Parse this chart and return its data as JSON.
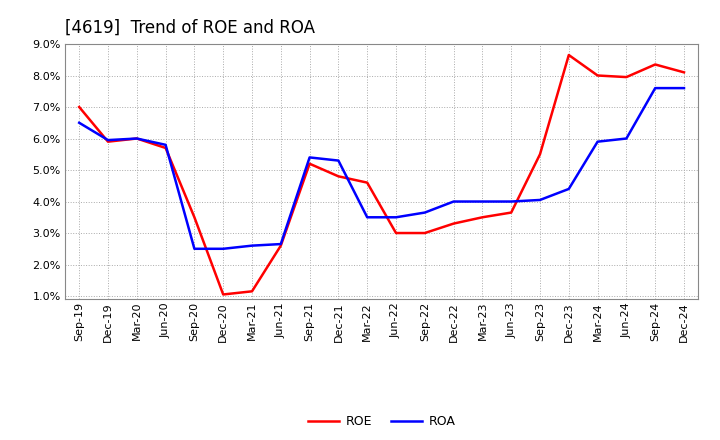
{
  "title": "[4619]  Trend of ROE and ROA",
  "x_labels": [
    "Sep-19",
    "Dec-19",
    "Mar-20",
    "Jun-20",
    "Sep-20",
    "Dec-20",
    "Mar-21",
    "Jun-21",
    "Sep-21",
    "Dec-21",
    "Mar-22",
    "Jun-22",
    "Sep-22",
    "Dec-22",
    "Mar-23",
    "Jun-23",
    "Sep-23",
    "Dec-23",
    "Mar-24",
    "Jun-24",
    "Sep-24",
    "Dec-24"
  ],
  "roe": [
    7.0,
    5.9,
    6.0,
    5.7,
    3.5,
    1.05,
    1.15,
    2.6,
    5.2,
    4.8,
    4.6,
    3.0,
    3.0,
    3.3,
    3.5,
    3.65,
    5.5,
    8.65,
    8.0,
    7.95,
    8.35,
    8.1
  ],
  "roa": [
    6.5,
    5.95,
    6.0,
    5.8,
    2.5,
    2.5,
    2.6,
    2.65,
    5.4,
    5.3,
    3.5,
    3.5,
    3.65,
    4.0,
    4.0,
    4.0,
    4.05,
    4.4,
    5.9,
    6.0,
    7.6,
    7.6
  ],
  "roe_color": "#ff0000",
  "roa_color": "#0000ff",
  "ylim_min": 1.0,
  "ylim_max": 9.0,
  "yticks": [
    1.0,
    2.0,
    3.0,
    4.0,
    5.0,
    6.0,
    7.0,
    8.0,
    9.0
  ],
  "background_color": "#ffffff",
  "plot_bg_color": "#ffffff",
  "grid_color": "#aaaaaa",
  "title_fontsize": 12,
  "axis_fontsize": 8,
  "legend_fontsize": 9,
  "linewidth": 1.8,
  "border_color": "#888888"
}
